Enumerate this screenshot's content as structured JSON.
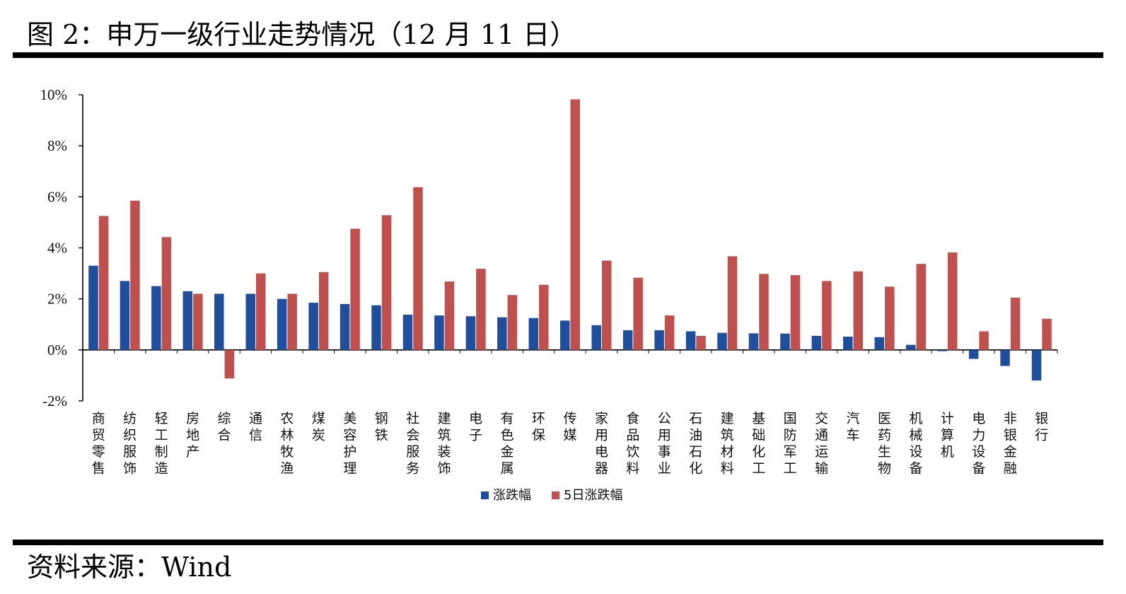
{
  "figure": {
    "title": "图 2：申万一级行业走势情况（12 月 11 日）",
    "source": "资料来源：Wind"
  },
  "chart_data": {
    "type": "bar",
    "ylim": [
      -2,
      10
    ],
    "yticks": [
      "10%",
      "8%",
      "6%",
      "4%",
      "2%",
      "0%",
      "-2%"
    ],
    "ytick_values": [
      10,
      8,
      6,
      4,
      2,
      0,
      -2
    ],
    "legend_position": "bottom",
    "grid": false,
    "categories": [
      "商贸零售",
      "纺织服饰",
      "轻工制造",
      "房地产",
      "综合",
      "通信",
      "农林牧渔",
      "煤炭",
      "美容护理",
      "钢铁",
      "社会服务",
      "建筑装饰",
      "电子",
      "有色金属",
      "环保",
      "传媒",
      "家用电器",
      "食品饮料",
      "公用事业",
      "石油石化",
      "建筑材料",
      "基础化工",
      "国防军工",
      "交通运输",
      "汽车",
      "医药生物",
      "机械设备",
      "计算机",
      "电力设备",
      "非银金融",
      "银行"
    ],
    "series": [
      {
        "name": "涨跌幅",
        "color": "#1f4e9c",
        "values": [
          3.3,
          2.7,
          2.5,
          2.3,
          2.2,
          2.2,
          2.0,
          1.85,
          1.8,
          1.75,
          1.38,
          1.35,
          1.32,
          1.28,
          1.25,
          1.15,
          0.97,
          0.77,
          0.77,
          0.73,
          0.67,
          0.65,
          0.64,
          0.55,
          0.52,
          0.5,
          0.2,
          -0.05,
          -0.35,
          -0.63,
          -1.2
        ]
      },
      {
        "name": "5日涨跌幅",
        "color": "#c0504d",
        "values": [
          5.25,
          5.85,
          4.42,
          2.2,
          -1.12,
          3.0,
          2.2,
          3.05,
          4.75,
          5.28,
          6.38,
          2.68,
          3.18,
          2.15,
          2.55,
          9.82,
          3.5,
          2.83,
          1.35,
          0.55,
          3.67,
          2.98,
          2.93,
          2.7,
          3.08,
          2.48,
          3.37,
          3.82,
          0.73,
          2.05,
          1.22
        ]
      }
    ]
  }
}
